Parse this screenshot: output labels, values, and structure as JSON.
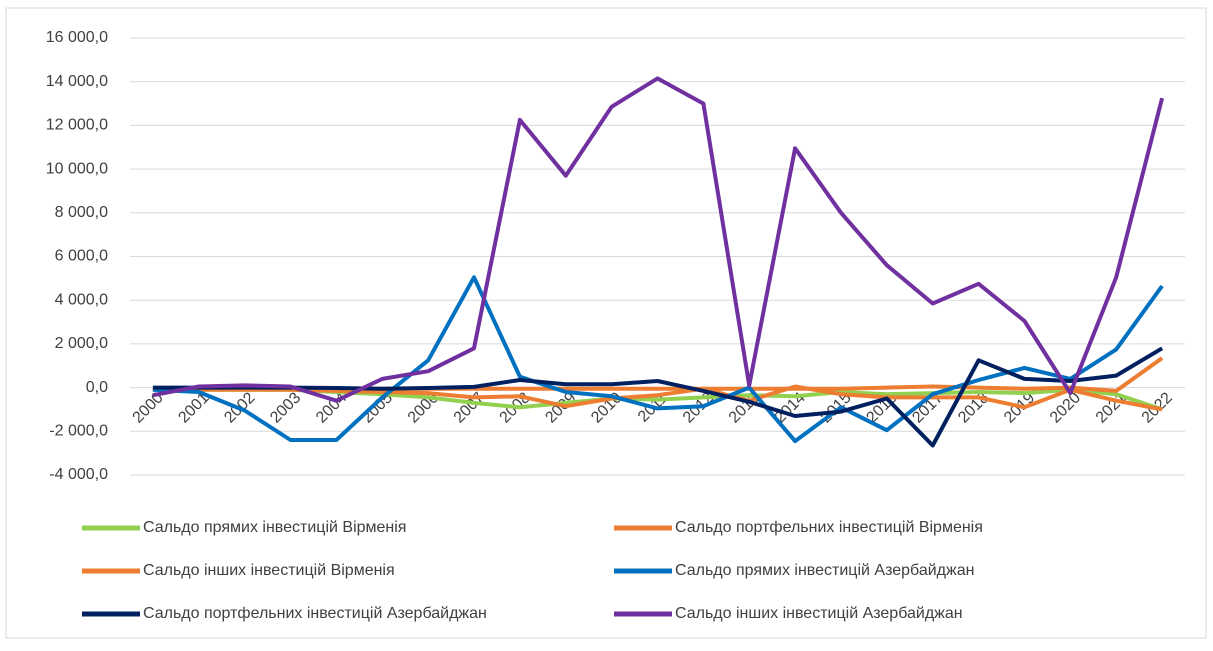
{
  "chart_data": {
    "type": "line",
    "categories": [
      "2000",
      "2001",
      "2002",
      "2003",
      "2004",
      "2005",
      "2006",
      "2007",
      "2008",
      "2009",
      "2010",
      "2011",
      "2012",
      "2013",
      "2014",
      "2015",
      "2016",
      "2017",
      "2018",
      "2019",
      "2020",
      "2021",
      "2022"
    ],
    "series": [
      {
        "name": "Сальдо прямих інвестицій Вірменія",
        "color": "#92d050",
        "values": [
          -50,
          -100,
          -100,
          -100,
          -200,
          -300,
          -450,
          -700,
          -900,
          -700,
          -500,
          -550,
          -450,
          -350,
          -400,
          -200,
          -300,
          -250,
          -200,
          -250,
          -100,
          -300,
          -1000
        ]
      },
      {
        "name": "Сальдо портфельних інвестицій Вірменія",
        "color": "#ed7d31",
        "values": [
          -50,
          -50,
          -50,
          -50,
          -50,
          -50,
          -50,
          -50,
          -50,
          -50,
          -50,
          -50,
          -50,
          -50,
          -50,
          -50,
          0,
          50,
          0,
          -50,
          0,
          -150,
          1350
        ]
      },
      {
        "name": "Сальдо інших інвестицій Вірменія",
        "color": "#ed7d31",
        "values": [
          -100,
          -100,
          -100,
          -100,
          -150,
          -200,
          -250,
          -450,
          -400,
          -850,
          -500,
          -350,
          -50,
          -600,
          50,
          -300,
          -450,
          -450,
          -450,
          -900,
          -100,
          -600,
          -1000
        ]
      },
      {
        "name": "Сальдо прямих інвестицій Азербайджан",
        "color": "#0070c0",
        "values": [
          -100,
          -200,
          -1050,
          -2400,
          -2400,
          -450,
          1250,
          5050,
          500,
          -200,
          -400,
          -950,
          -850,
          0,
          -2450,
          -900,
          -1950,
          -300,
          350,
          900,
          400,
          1750,
          4650
        ]
      },
      {
        "name": "Сальдо портфельних інвестицій Азербайджан",
        "color": "#002060",
        "values": [
          0,
          0,
          0,
          0,
          -20,
          -50,
          -20,
          30,
          350,
          150,
          150,
          300,
          -150,
          -650,
          -1300,
          -1100,
          -500,
          -2650,
          1250,
          400,
          300,
          550,
          1800
        ]
      },
      {
        "name": "Сальдо інших інвестицій Азербайджан",
        "color": "#7030a0",
        "values": [
          -350,
          50,
          100,
          50,
          -600,
          400,
          750,
          1800,
          12250,
          9700,
          12850,
          14150,
          13000,
          100,
          10950,
          8000,
          5600,
          3850,
          4750,
          3050,
          -250,
          5050,
          13250
        ]
      }
    ],
    "ylim": [
      -4000,
      16000
    ],
    "yticks": [
      {
        "value": -4000,
        "label": "-4 000,0"
      },
      {
        "value": -2000,
        "label": "-2 000,0"
      },
      {
        "value": 0,
        "label": "0,0"
      },
      {
        "value": 2000,
        "label": "2 000,0"
      },
      {
        "value": 4000,
        "label": "4 000,0"
      },
      {
        "value": 6000,
        "label": "6 000,0"
      },
      {
        "value": 8000,
        "label": "8 000,0"
      },
      {
        "value": 10000,
        "label": "10 000,0"
      },
      {
        "value": 12000,
        "label": "12 000,0"
      },
      {
        "value": 14000,
        "label": "14 000,0"
      },
      {
        "value": 16000,
        "label": "16 000,0"
      }
    ],
    "grid": true
  }
}
